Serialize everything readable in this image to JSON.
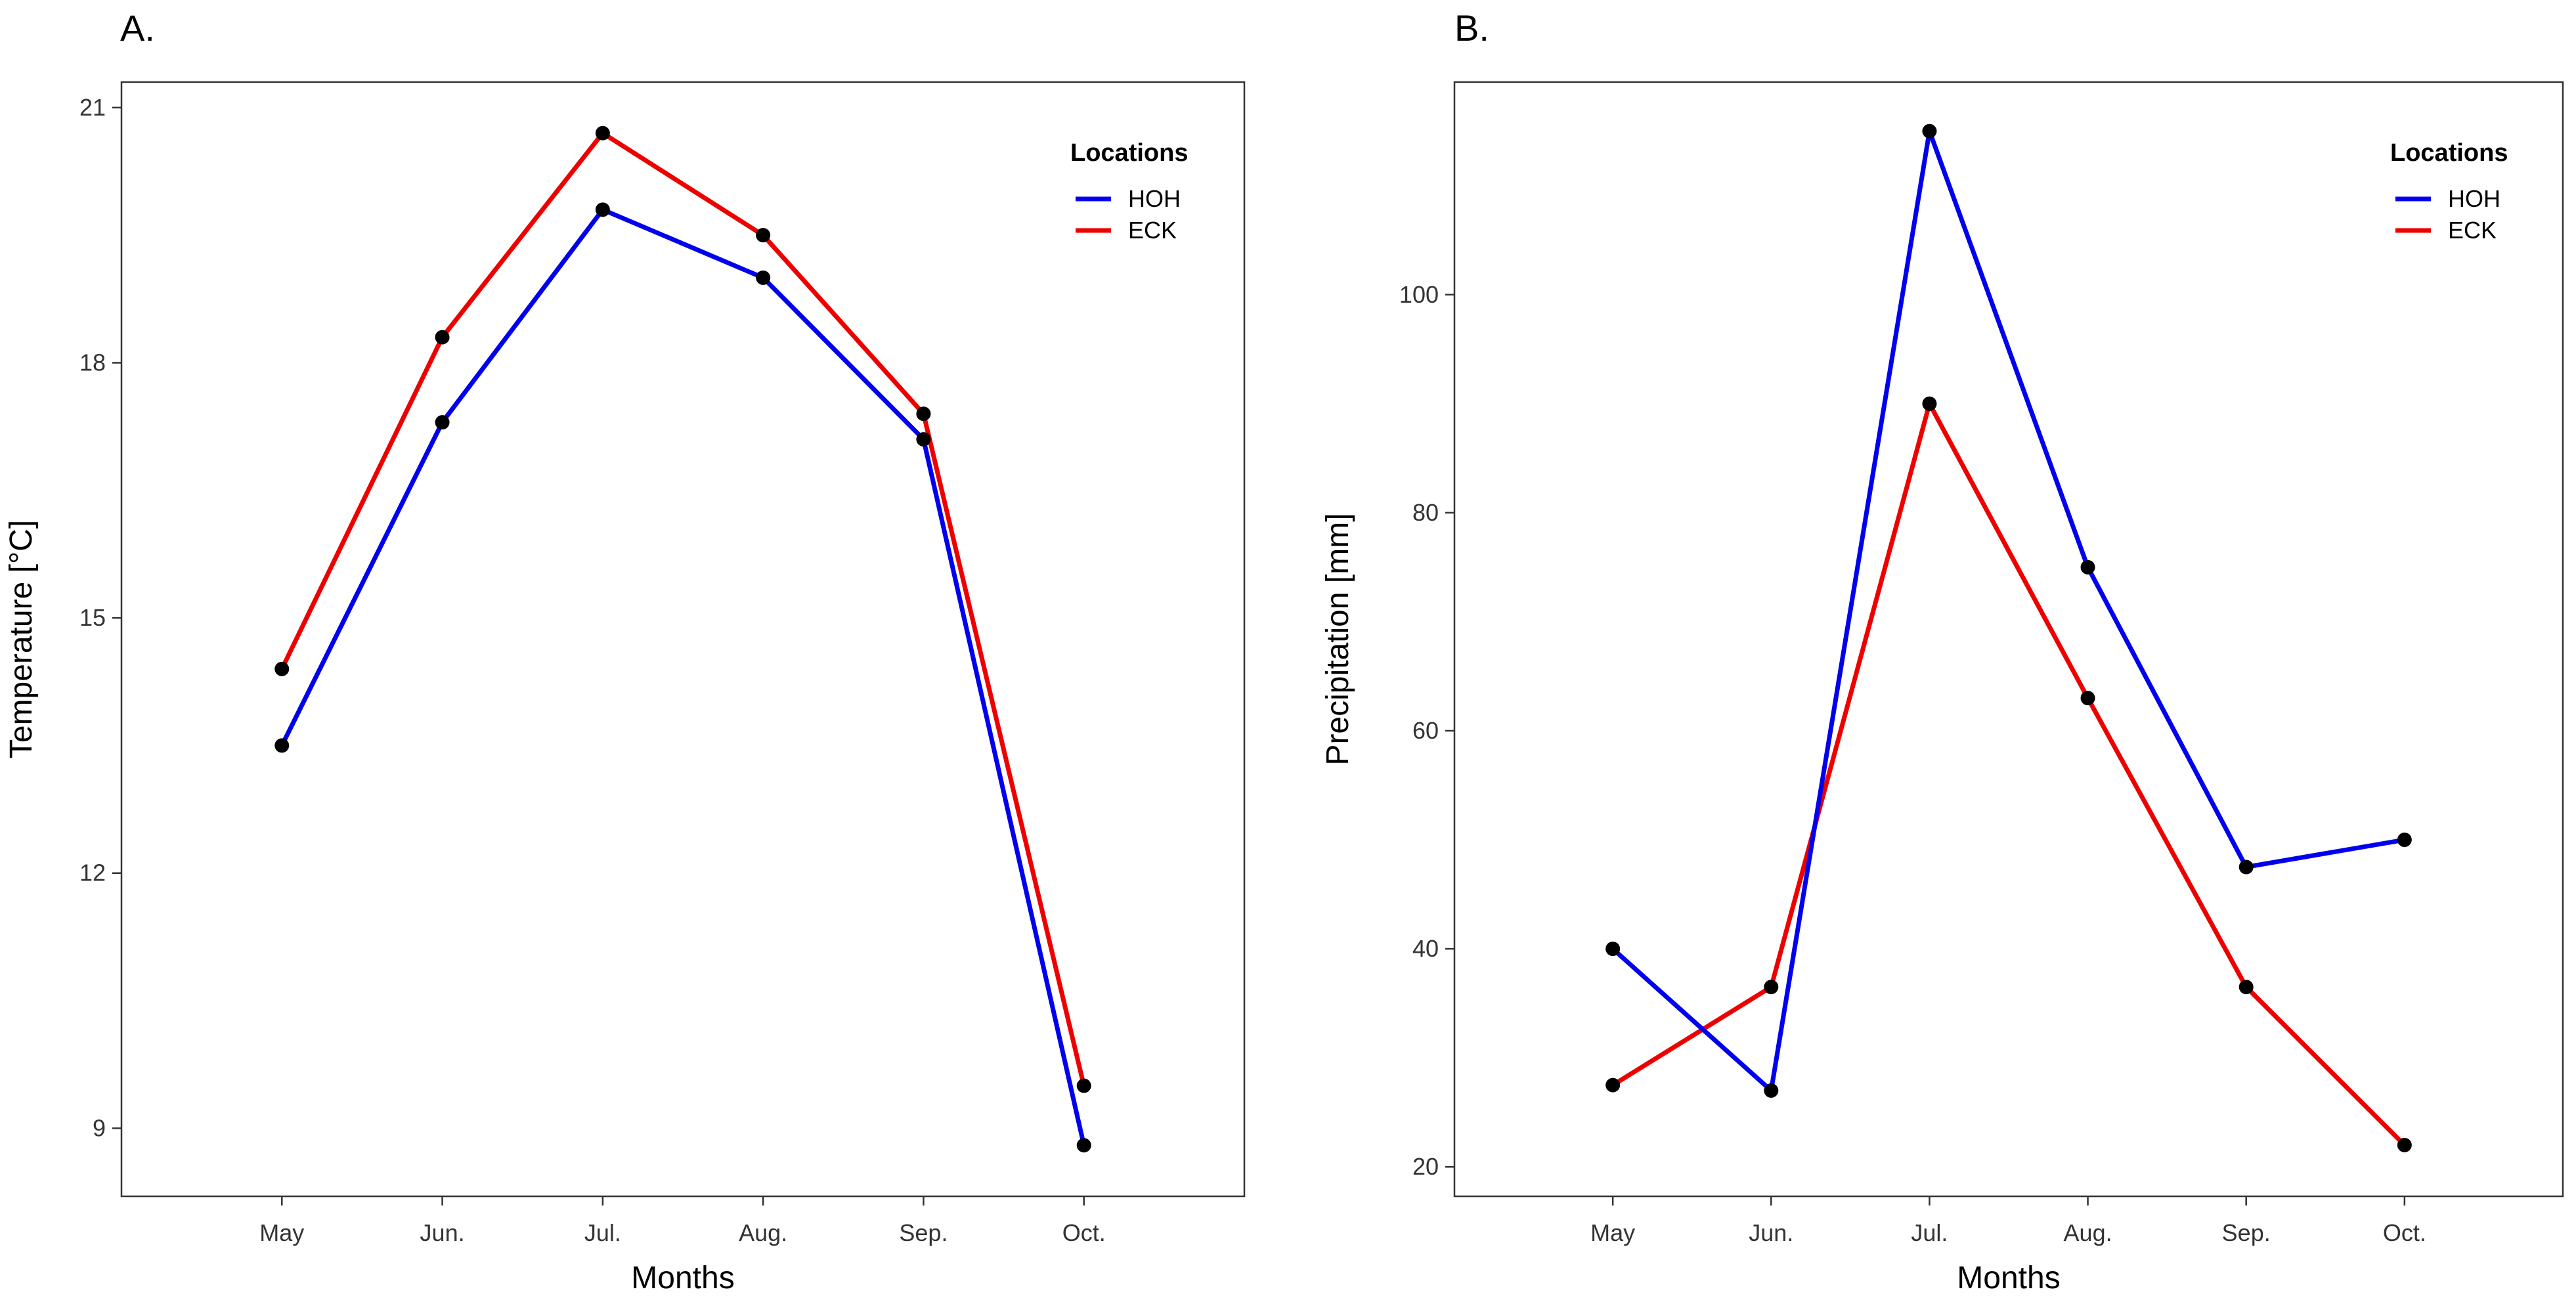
{
  "chart_data": [
    {
      "type": "line",
      "panel_label": "A.",
      "title": "",
      "xlabel": "Months",
      "ylabel": "Temperature [°C]",
      "categories": [
        "May",
        "Jun.",
        "Jul.",
        "Aug.",
        "Sep.",
        "Oct."
      ],
      "yticks": [
        9,
        12,
        15,
        18,
        21
      ],
      "ylim": [
        8.2,
        21.3
      ],
      "grid": false,
      "legend": {
        "title": "Locations",
        "placement": "top-right"
      },
      "series": [
        {
          "name": "HOH",
          "color": "#0000EE",
          "values": [
            13.5,
            17.3,
            19.8,
            19.0,
            17.1,
            8.8
          ]
        },
        {
          "name": "ECK",
          "color": "#EE0000",
          "values": [
            14.4,
            18.3,
            20.7,
            19.5,
            17.4,
            9.5
          ]
        }
      ]
    },
    {
      "type": "line",
      "panel_label": "B.",
      "title": "",
      "xlabel": "Months",
      "ylabel": "Precipitation [mm]",
      "categories": [
        "May",
        "Jun.",
        "Jul.",
        "Aug.",
        "Sep.",
        "Oct."
      ],
      "yticks": [
        20,
        40,
        60,
        80,
        100
      ],
      "ylim": [
        17.3,
        119.5
      ],
      "grid": false,
      "legend": {
        "title": "Locations",
        "placement": "top-right"
      },
      "series": [
        {
          "name": "HOH",
          "color": "#0000EE",
          "values": [
            40,
            27,
            115,
            75,
            47.5,
            50
          ]
        },
        {
          "name": "ECK",
          "color": "#EE0000",
          "values": [
            27.5,
            36.5,
            90,
            63,
            36.5,
            22
          ]
        }
      ]
    }
  ]
}
